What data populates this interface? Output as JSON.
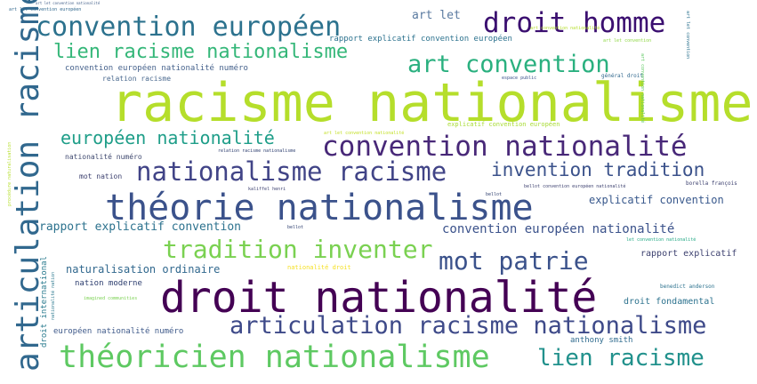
{
  "words": {
    "w01": {
      "text": "racisme nationalisme",
      "color": "#b5de2b"
    },
    "w02": {
      "text": "droit nationalité",
      "color": "#440154"
    },
    "w03": {
      "text": "théorie nationalisme",
      "color": "#3b528b"
    },
    "w04": {
      "text": "théoricien nationalisme",
      "color": "#5ec962"
    },
    "w05": {
      "text": "articulation racisme",
      "color": "#31688e"
    },
    "w06": {
      "text": "convention européen",
      "color": "#2c728e"
    },
    "w07": {
      "text": "droit homme",
      "color": "#3b0f70"
    },
    "w08": {
      "text": "convention nationalité",
      "color": "#482878"
    },
    "w09": {
      "text": "articulation racisme nationalisme",
      "color": "#3e4a89"
    },
    "w10": {
      "text": "tradition inventer",
      "color": "#7ad151"
    },
    "w11": {
      "text": "mot patrie",
      "color": "#3b528b"
    },
    "w12": {
      "text": "lien racisme nationalisme",
      "color": "#35b779"
    },
    "w13": {
      "text": "art convention",
      "color": "#2ab07f"
    },
    "w14": {
      "text": "nationalisme racisme",
      "color": "#414487"
    },
    "w15": {
      "text": "européen nationalité",
      "color": "#1f9e89"
    },
    "w16": {
      "text": "invention tradition",
      "color": "#3b528b"
    },
    "w17": {
      "text": "lien racisme",
      "color": "#21918c"
    },
    "w18": {
      "text": "convention européen nationalité",
      "color": "#3b528b"
    },
    "w19": {
      "text": "rapport explicatif convention",
      "color": "#2c728e"
    },
    "w20": {
      "text": "explicatif convention",
      "color": "#38588c"
    },
    "w21": {
      "text": "naturalisation ordinaire",
      "color": "#31688e"
    },
    "w22": {
      "text": "rapport explicatif convention européen",
      "color": "#2c728e"
    },
    "w23": {
      "text": "art let",
      "color": "#5a7aa0"
    },
    "w24": {
      "text": "convention européen nationalité numéro",
      "color": "#46628c"
    },
    "w25": {
      "text": "relation racisme",
      "color": "#4b6a8f"
    },
    "w26": {
      "text": "nationalité numéro",
      "color": "#404a70"
    },
    "w27": {
      "text": "mot nation",
      "color": "#3b3f6e"
    },
    "w28": {
      "text": "nation moderne",
      "color": "#2c3d6e"
    },
    "w29": {
      "text": "européen nationalité numéro",
      "color": "#3f5a8a"
    },
    "w30": {
      "text": "anthony smith",
      "color": "#2f6b8e"
    },
    "w31": {
      "text": "droit fondamental",
      "color": "#2c728e"
    },
    "w32": {
      "text": "rapport explicatif",
      "color": "#3b3f6e"
    },
    "w33": {
      "text": "droit international",
      "color": "#2a7b8e"
    },
    "w34": {
      "text": "nationalité droit",
      "color": "#f5e025"
    },
    "w35": {
      "text": "explicatif convention européen",
      "color": "#a8db34"
    },
    "w36": {
      "text": "art let convention nationalité",
      "color": "#c2df23"
    },
    "w37": {
      "text": "art let convention",
      "color": "#8fd744"
    },
    "w38": {
      "text": "bellot",
      "color": "#2c3d6e"
    },
    "w39": {
      "text": "bellot convention européen nationalité",
      "color": "#3b3f6e"
    },
    "w40": {
      "text": "let convention nationalité",
      "color": "#22a884"
    },
    "w41": {
      "text": "benedict anderson",
      "color": "#2c728e"
    },
    "w42": {
      "text": "imagined communities",
      "color": "#7ad151"
    },
    "w43": {
      "text": "relation racisme nationalisme",
      "color": "#2c3d6e"
    },
    "w44": {
      "text": "espace public",
      "color": "#3b528b"
    },
    "w45": {
      "text": "général droit",
      "color": "#31688e"
    },
    "w46": {
      "text": "art let convention européen",
      "color": "#31688e"
    },
    "w47": {
      "text": "art let convention nationalité",
      "color": "#46628c"
    },
    "w48": {
      "text": "procédure naturalisation",
      "color": "#b5de2b"
    },
    "w49": {
      "text": "nationalité nation",
      "color": "#2a788e"
    },
    "w50": {
      "text": "art let convention",
      "color": "#2c728e"
    },
    "w51": {
      "text": "bellot",
      "color": "#2c3d6e"
    },
    "w52": {
      "text": "borella françois",
      "color": "#3b3f6e"
    },
    "w53": {
      "text": "kaliffel henri",
      "color": "#3b3f6e"
    },
    "w54": {
      "text": "art convention nationalité",
      "color": "#b5de2b"
    },
    "w55": {
      "text": "art convention nationalité",
      "color": "#5ec962"
    }
  }
}
